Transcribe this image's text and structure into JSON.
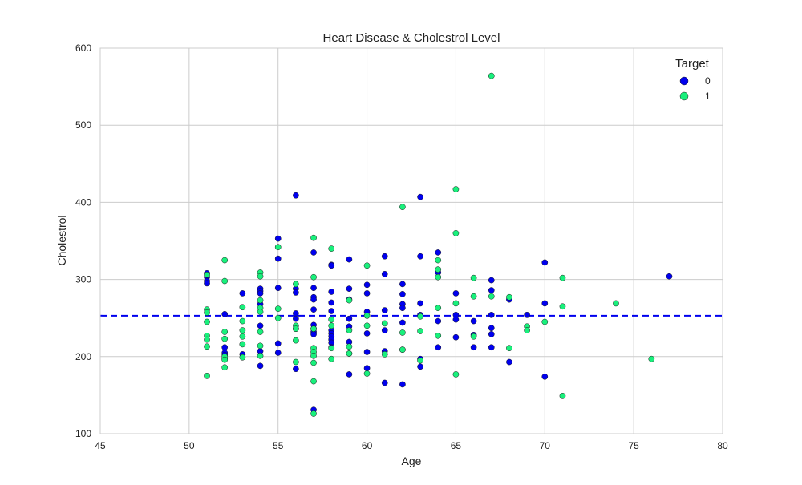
{
  "chart_data": {
    "type": "scatter",
    "title": "Heart Disease & Cholestrol Level",
    "xlabel": "Age",
    "ylabel": "Cholestrol",
    "xlim": [
      45,
      80
    ],
    "ylim": [
      100,
      600
    ],
    "xticks": [
      45,
      50,
      55,
      60,
      65,
      70,
      75,
      80
    ],
    "yticks": [
      100,
      200,
      300,
      400,
      500,
      600
    ],
    "grid": true,
    "legend": {
      "title": "Target",
      "placement": "top-right"
    },
    "reference_line": {
      "y": 253,
      "style": "dashed",
      "color": "#0000ee"
    },
    "series": [
      {
        "name": "0",
        "color": "#0000ee",
        "points": [
          [
            51,
            308
          ],
          [
            51,
            303
          ],
          [
            51,
            298
          ],
          [
            51,
            295
          ],
          [
            52,
            255
          ],
          [
            52,
            212
          ],
          [
            52,
            205
          ],
          [
            52,
            202
          ],
          [
            52,
            197
          ],
          [
            53,
            282
          ],
          [
            53,
            203
          ],
          [
            54,
            288
          ],
          [
            54,
            285
          ],
          [
            54,
            282
          ],
          [
            54,
            268
          ],
          [
            54,
            240
          ],
          [
            54,
            207
          ],
          [
            54,
            188
          ],
          [
            55,
            353
          ],
          [
            55,
            327
          ],
          [
            55,
            289
          ],
          [
            55,
            217
          ],
          [
            55,
            205
          ],
          [
            56,
            409
          ],
          [
            56,
            288
          ],
          [
            56,
            283
          ],
          [
            56,
            256
          ],
          [
            56,
            249
          ],
          [
            56,
            236
          ],
          [
            56,
            184
          ],
          [
            57,
            335
          ],
          [
            57,
            289
          ],
          [
            57,
            277
          ],
          [
            57,
            274
          ],
          [
            57,
            261
          ],
          [
            57,
            241
          ],
          [
            57,
            236
          ],
          [
            57,
            232
          ],
          [
            57,
            229
          ],
          [
            57,
            131
          ],
          [
            58,
            319
          ],
          [
            58,
            318
          ],
          [
            58,
            284
          ],
          [
            58,
            270
          ],
          [
            58,
            259
          ],
          [
            58,
            234
          ],
          [
            58,
            230
          ],
          [
            58,
            226
          ],
          [
            58,
            222
          ],
          [
            58,
            218
          ],
          [
            58,
            212
          ],
          [
            59,
            326
          ],
          [
            59,
            288
          ],
          [
            59,
            274
          ],
          [
            59,
            249
          ],
          [
            59,
            239
          ],
          [
            59,
            219
          ],
          [
            59,
            204
          ],
          [
            59,
            177
          ],
          [
            60,
            293
          ],
          [
            60,
            282
          ],
          [
            60,
            258
          ],
          [
            60,
            253
          ],
          [
            60,
            230
          ],
          [
            60,
            206
          ],
          [
            60,
            185
          ],
          [
            61,
            330
          ],
          [
            61,
            307
          ],
          [
            61,
            260
          ],
          [
            61,
            234
          ],
          [
            61,
            207
          ],
          [
            61,
            166
          ],
          [
            62,
            294
          ],
          [
            62,
            281
          ],
          [
            62,
            268
          ],
          [
            62,
            263
          ],
          [
            62,
            244
          ],
          [
            62,
            209
          ],
          [
            62,
            164
          ],
          [
            63,
            407
          ],
          [
            63,
            330
          ],
          [
            63,
            269
          ],
          [
            63,
            254
          ],
          [
            63,
            197
          ],
          [
            63,
            187
          ],
          [
            64,
            335
          ],
          [
            64,
            309
          ],
          [
            64,
            246
          ],
          [
            64,
            212
          ],
          [
            65,
            282
          ],
          [
            65,
            254
          ],
          [
            65,
            248
          ],
          [
            65,
            225
          ],
          [
            66,
            246
          ],
          [
            66,
            228
          ],
          [
            66,
            212
          ],
          [
            67,
            299
          ],
          [
            67,
            286
          ],
          [
            67,
            254
          ],
          [
            67,
            237
          ],
          [
            67,
            229
          ],
          [
            67,
            212
          ],
          [
            68,
            274
          ],
          [
            68,
            193
          ],
          [
            69,
            254
          ],
          [
            70,
            322
          ],
          [
            70,
            269
          ],
          [
            70,
            174
          ],
          [
            77,
            304
          ]
        ]
      },
      {
        "name": "1",
        "color": "#19f07c",
        "points": [
          [
            51,
            306
          ],
          [
            51,
            261
          ],
          [
            51,
            257
          ],
          [
            51,
            245
          ],
          [
            51,
            227
          ],
          [
            51,
            222
          ],
          [
            51,
            213
          ],
          [
            51,
            175
          ],
          [
            52,
            325
          ],
          [
            52,
            298
          ],
          [
            52,
            232
          ],
          [
            52,
            223
          ],
          [
            52,
            200
          ],
          [
            52,
            196
          ],
          [
            52,
            186
          ],
          [
            53,
            264
          ],
          [
            53,
            246
          ],
          [
            53,
            234
          ],
          [
            53,
            226
          ],
          [
            53,
            216
          ],
          [
            53,
            199
          ],
          [
            54,
            309
          ],
          [
            54,
            304
          ],
          [
            54,
            273
          ],
          [
            54,
            263
          ],
          [
            54,
            258
          ],
          [
            54,
            232
          ],
          [
            54,
            214
          ],
          [
            54,
            201
          ],
          [
            55,
            342
          ],
          [
            55,
            262
          ],
          [
            55,
            250
          ],
          [
            56,
            294
          ],
          [
            56,
            240
          ],
          [
            56,
            236
          ],
          [
            56,
            221
          ],
          [
            56,
            193
          ],
          [
            57,
            354
          ],
          [
            57,
            303
          ],
          [
            57,
            236
          ],
          [
            57,
            211
          ],
          [
            57,
            206
          ],
          [
            57,
            201
          ],
          [
            57,
            192
          ],
          [
            57,
            168
          ],
          [
            57,
            126
          ],
          [
            58,
            340
          ],
          [
            58,
            248
          ],
          [
            58,
            240
          ],
          [
            58,
            211
          ],
          [
            58,
            197
          ],
          [
            59,
            273
          ],
          [
            59,
            234
          ],
          [
            59,
            213
          ],
          [
            59,
            204
          ],
          [
            60,
            318
          ],
          [
            60,
            253
          ],
          [
            60,
            240
          ],
          [
            60,
            178
          ],
          [
            61,
            243
          ],
          [
            61,
            203
          ],
          [
            62,
            394
          ],
          [
            62,
            231
          ],
          [
            62,
            209
          ],
          [
            63,
            252
          ],
          [
            63,
            233
          ],
          [
            63,
            195
          ],
          [
            64,
            325
          ],
          [
            64,
            313
          ],
          [
            64,
            303
          ],
          [
            64,
            263
          ],
          [
            64,
            227
          ],
          [
            65,
            417
          ],
          [
            65,
            360
          ],
          [
            65,
            269
          ],
          [
            65,
            177
          ],
          [
            66,
            302
          ],
          [
            66,
            278
          ],
          [
            66,
            226
          ],
          [
            67,
            564
          ],
          [
            67,
            278
          ],
          [
            68,
            277
          ],
          [
            68,
            211
          ],
          [
            69,
            239
          ],
          [
            69,
            234
          ],
          [
            70,
            245
          ],
          [
            71,
            302
          ],
          [
            71,
            265
          ],
          [
            71,
            149
          ],
          [
            74,
            269
          ],
          [
            76,
            197
          ]
        ]
      }
    ]
  }
}
